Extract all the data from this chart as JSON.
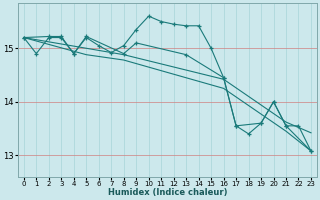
{
  "xlabel": "Humidex (Indice chaleur)",
  "xlim": [
    -0.5,
    23.5
  ],
  "ylim": [
    12.6,
    15.85
  ],
  "yticks": [
    13,
    14,
    15
  ],
  "xticks": [
    0,
    1,
    2,
    3,
    4,
    5,
    6,
    7,
    8,
    9,
    10,
    11,
    12,
    13,
    14,
    15,
    16,
    17,
    18,
    19,
    20,
    21,
    22,
    23
  ],
  "bg_color": "#cce8ec",
  "grid_color": "#a8d4d8",
  "line_color": "#1a7a7a",
  "series": [
    {
      "x": [
        0,
        1,
        2,
        3,
        4,
        5,
        6,
        7,
        8,
        9,
        10,
        11,
        12,
        13,
        14,
        15,
        16,
        17,
        18,
        19,
        20,
        21,
        22,
        23
      ],
      "y": [
        15.2,
        14.9,
        15.2,
        15.2,
        14.9,
        15.2,
        15.05,
        14.92,
        15.05,
        15.35,
        15.6,
        15.5,
        15.45,
        15.42,
        15.42,
        15.0,
        14.45,
        13.55,
        13.4,
        13.6,
        14.0,
        13.55,
        13.55,
        13.08
      ],
      "marker": true
    },
    {
      "x": [
        0,
        2,
        3,
        4,
        5,
        8,
        9,
        13,
        16,
        17,
        19,
        20,
        21,
        23
      ],
      "y": [
        15.2,
        15.22,
        15.22,
        14.9,
        15.22,
        14.9,
        15.1,
        14.88,
        14.45,
        13.55,
        13.6,
        14.0,
        13.55,
        13.08
      ],
      "marker": true
    },
    {
      "x": [
        0,
        5,
        8,
        16,
        21,
        23
      ],
      "y": [
        15.2,
        15.0,
        14.88,
        14.42,
        13.62,
        13.42
      ],
      "marker": false
    },
    {
      "x": [
        0,
        5,
        8,
        16,
        21,
        23
      ],
      "y": [
        15.2,
        14.88,
        14.78,
        14.25,
        13.45,
        13.08
      ],
      "marker": false
    }
  ]
}
